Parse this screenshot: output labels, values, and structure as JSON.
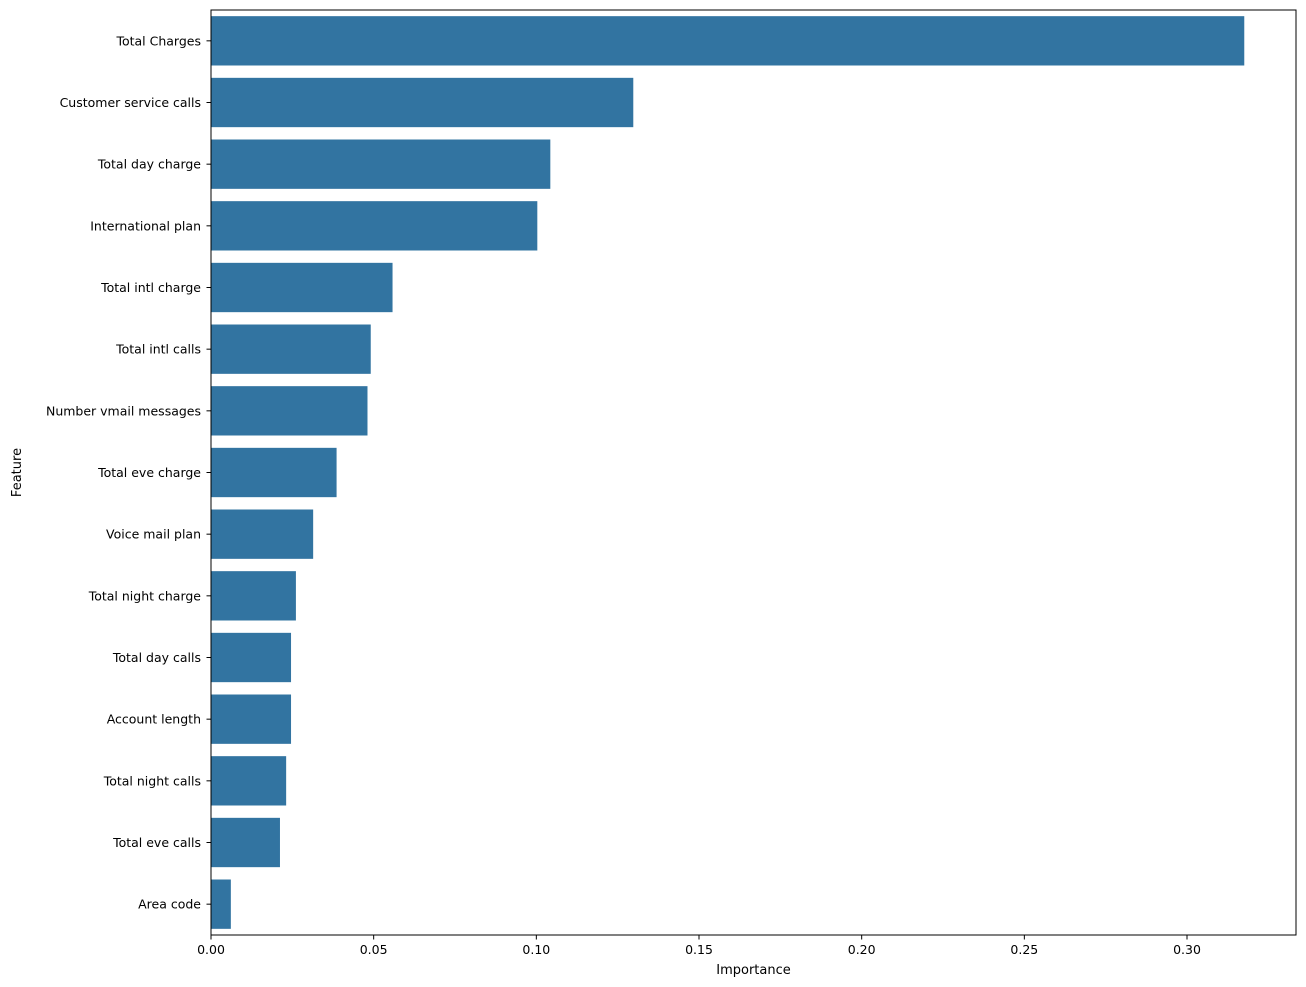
{
  "chart_data": {
    "type": "bar",
    "orientation": "horizontal",
    "title": "",
    "xlabel": "Importance",
    "ylabel": "Feature",
    "xlim": [
      0,
      0.3335
    ],
    "xticks": [
      0.0,
      0.05,
      0.1,
      0.15,
      0.2,
      0.25,
      0.3
    ],
    "xtick_labels": [
      "0.00",
      "0.05",
      "0.10",
      "0.15",
      "0.20",
      "0.25",
      "0.30"
    ],
    "grid": false,
    "legend": "none",
    "bar_color": "#3274a1",
    "categories": [
      "Total Charges",
      "Customer service calls",
      "Total day charge",
      "International plan",
      "Total intl charge",
      "Total intl calls",
      "Number vmail messages",
      "Total eve charge",
      "Voice mail plan",
      "Total night charge",
      "Total day calls",
      "Account length",
      "Total night calls",
      "Total eve calls",
      "Area code"
    ],
    "values": [
      0.3176,
      0.1298,
      0.1043,
      0.1003,
      0.0558,
      0.0491,
      0.0481,
      0.0386,
      0.0314,
      0.0261,
      0.0246,
      0.0246,
      0.0231,
      0.0212,
      0.0061
    ]
  }
}
